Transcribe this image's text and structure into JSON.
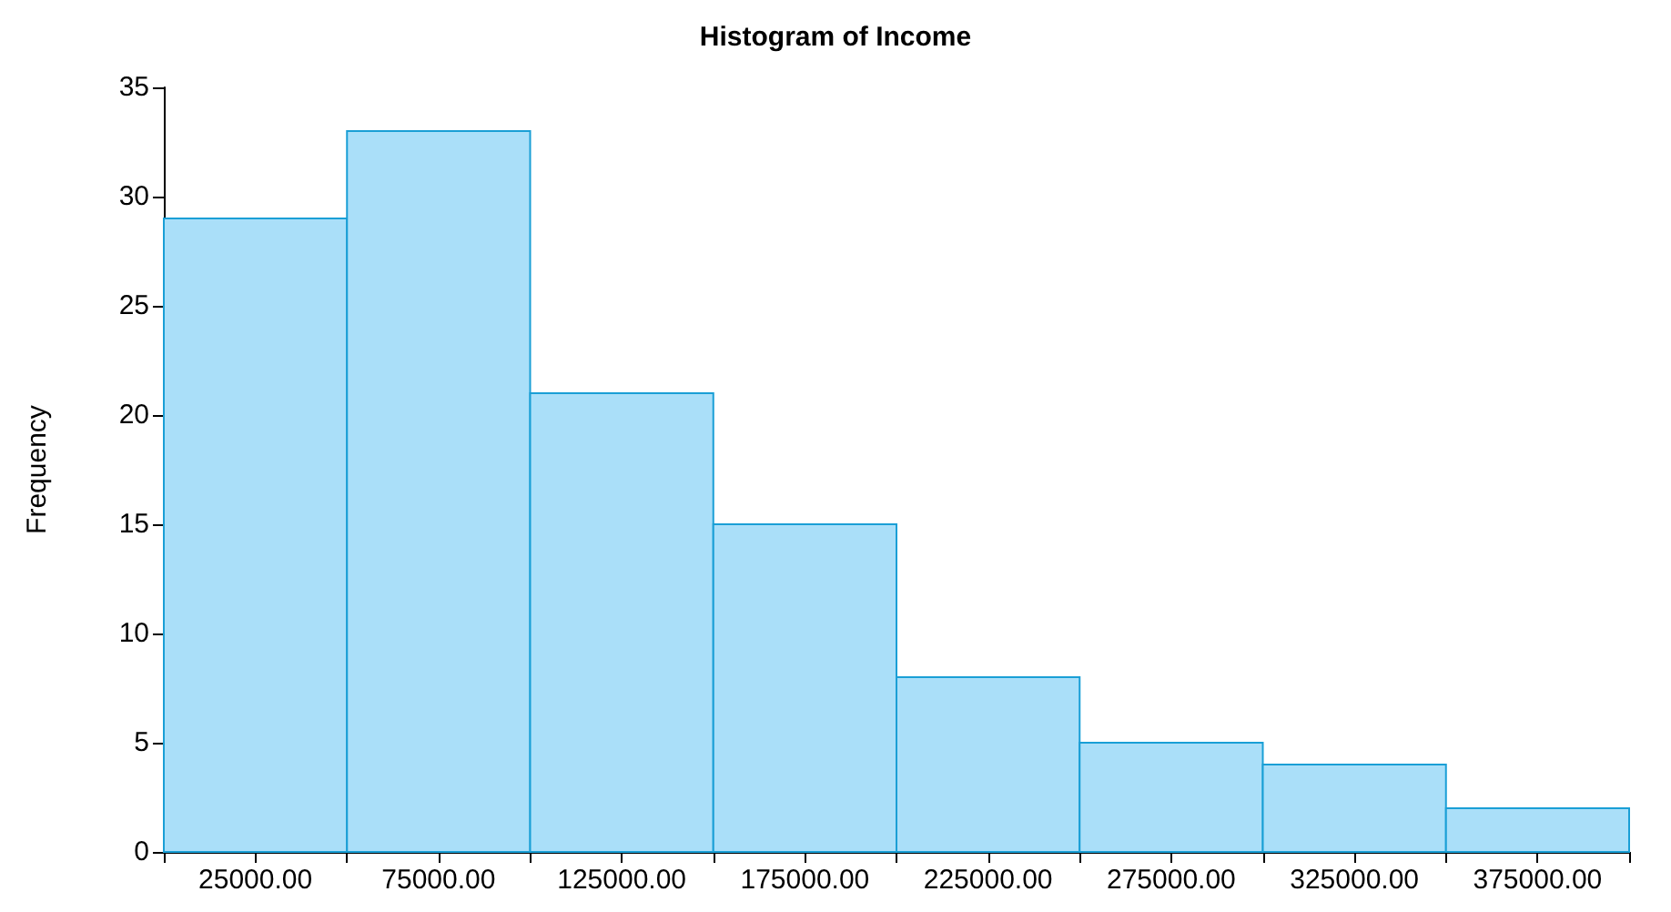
{
  "chart_data": {
    "type": "histogram",
    "title": "Histogram of Income",
    "ylabel": "Frequency",
    "bins": [
      0,
      50000,
      100000,
      150000,
      200000,
      250000,
      300000,
      350000,
      400000
    ],
    "values": [
      29,
      33,
      21,
      15,
      8,
      5,
      4,
      2
    ],
    "color": "#aadff9",
    "xlim": [
      0,
      400000
    ],
    "xticks": [
      {
        "value": 0,
        "label": null
      },
      {
        "value": 25000,
        "label": "25000.00"
      },
      {
        "value": 50000,
        "label": null
      },
      {
        "value": 75000,
        "label": "75000.00"
      },
      {
        "value": 100000,
        "label": null
      },
      {
        "value": 125000,
        "label": "125000.00"
      },
      {
        "value": 150000,
        "label": null
      },
      {
        "value": 175000,
        "label": "175000.00"
      },
      {
        "value": 200000,
        "label": null
      },
      {
        "value": 225000,
        "label": "225000.00"
      },
      {
        "value": 250000,
        "label": null
      },
      {
        "value": 275000,
        "label": "275000.00"
      },
      {
        "value": 300000,
        "label": null
      },
      {
        "value": 325000,
        "label": "325000.00"
      },
      {
        "value": 350000,
        "label": null
      },
      {
        "value": 375000,
        "label": "375000.00"
      },
      {
        "value": 400000,
        "label": null
      }
    ],
    "ylim": [
      0,
      35
    ],
    "yticks": [
      0,
      5,
      10,
      15,
      20,
      25,
      30,
      35
    ],
    "grid": false
  }
}
